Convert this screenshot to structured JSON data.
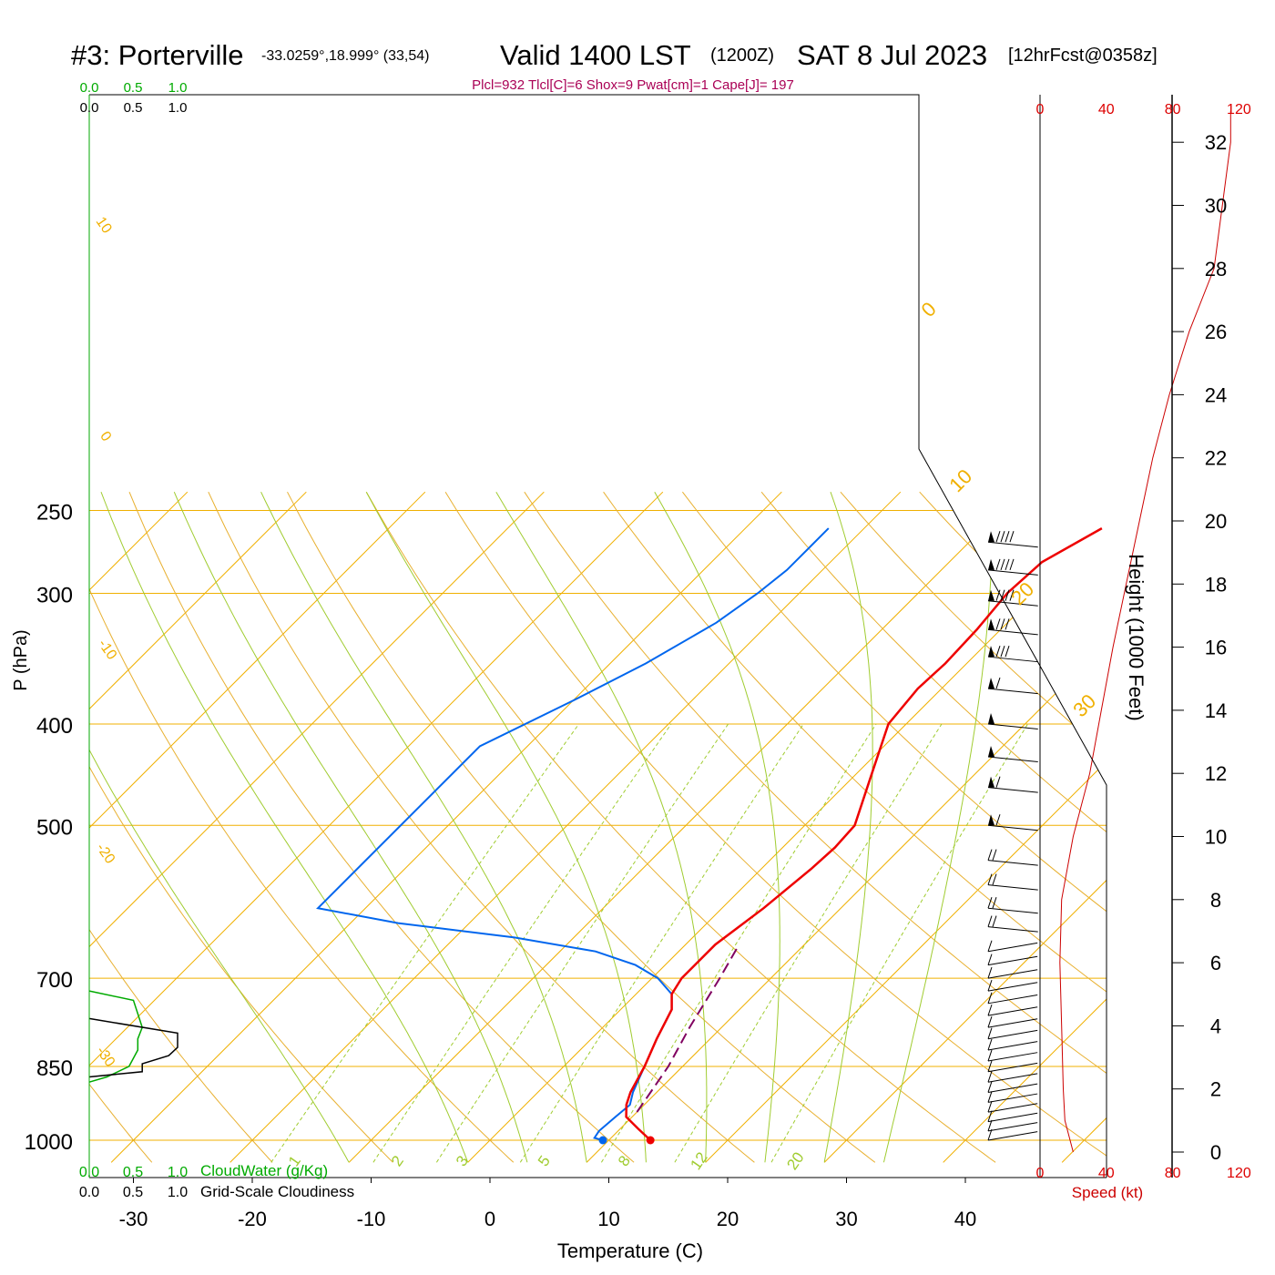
{
  "header": {
    "station": "#3: Porterville",
    "coords": "-33.0259°,18.999° (33,54)",
    "valid": "Valid 1400 LST",
    "zulu": "(1200Z)",
    "date": "SAT 8 Jul 2023",
    "fcst": "[12hrFcst@0358z]",
    "indices": "Plcl=932 Tlcl[C]=6 Shox=9 Pwat[cm]=1 Cape[J]= 197"
  },
  "colors": {
    "temperature": "#ee0000",
    "dewpoint": "#0066ee",
    "parcel": "#800060",
    "isobar": "#f0b000",
    "isotherm": "#f0b000",
    "dry_adiabat": "#e8b030",
    "moist_adiabat": "#a0cc30",
    "mixing_ratio": "#a0cc30",
    "cloud_water": "#00aa00",
    "cloudiness": "#000000",
    "speed": "#cc0000",
    "indices": "#aa0055"
  },
  "chart_data": {
    "type": "skew-t",
    "xlabel": "Temperature (C)",
    "ylabel": "P (hPa)",
    "right_axis_label": "Height (1000 Feet)",
    "x_ticks": [
      "-30",
      "-20",
      "-10",
      "0",
      "10",
      "20",
      "30",
      "40"
    ],
    "y_ticks": [
      "250",
      "300",
      "400",
      "500",
      "700",
      "850",
      "1000"
    ],
    "height_ticks": [
      "0",
      "2",
      "4",
      "6",
      "8",
      "10",
      "12",
      "14",
      "16",
      "18",
      "20",
      "22",
      "24",
      "26",
      "28",
      "30",
      "32"
    ],
    "speed_ticks": [
      "0",
      "40",
      "80",
      "120"
    ],
    "speed_label": "Speed (kt)",
    "cloud_scale_green": [
      "0.0",
      "0.5",
      "1.0"
    ],
    "cloud_scale_black": [
      "0.0",
      "0.5",
      "1.0"
    ],
    "cloud_water_label": "CloudWater (g/Kg)",
    "cloudiness_label": "Grid-Scale Cloudiness",
    "dry_adiabat_labels": [
      "10",
      "0",
      "-10",
      "-20",
      "-30"
    ],
    "isotherm_labels": [
      "0",
      "10",
      "20",
      "30"
    ],
    "mixing_ratio_labels": [
      "1",
      "2",
      "3",
      "5",
      "8",
      "12",
      "20"
    ],
    "temperature": [
      [
        1000,
        13.5
      ],
      [
        975,
        11.5
      ],
      [
        950,
        9.5
      ],
      [
        925,
        8.5
      ],
      [
        900,
        7.8
      ],
      [
        850,
        6.8
      ],
      [
        800,
        5.5
      ],
      [
        750,
        4.3
      ],
      [
        725,
        3.0
      ],
      [
        700,
        2.5
      ],
      [
        650,
        2.5
      ],
      [
        600,
        3.5
      ],
      [
        550,
        4.2
      ],
      [
        525,
        4.4
      ],
      [
        500,
        4.2
      ],
      [
        450,
        1.5
      ],
      [
        400,
        -1.5
      ],
      [
        370,
        -2.0
      ],
      [
        350,
        -1.8
      ],
      [
        325,
        -2.0
      ],
      [
        300,
        -2.5
      ],
      [
        280,
        -2.2
      ],
      [
        260,
        0.0
      ]
    ],
    "dewpoint": [
      [
        1000,
        9.5
      ],
      [
        995,
        8.6
      ],
      [
        980,
        8.4
      ],
      [
        950,
        8.6
      ],
      [
        925,
        8.8
      ],
      [
        900,
        8.0
      ],
      [
        850,
        6.8
      ],
      [
        800,
        5.5
      ],
      [
        750,
        4.3
      ],
      [
        725,
        3.0
      ],
      [
        700,
        0.5
      ],
      [
        680,
        -2.5
      ],
      [
        660,
        -7.0
      ],
      [
        640,
        -15.0
      ],
      [
        620,
        -26.0
      ],
      [
        600,
        -34.0
      ],
      [
        420,
        -34.0
      ],
      [
        380,
        -30.0
      ],
      [
        350,
        -27.0
      ],
      [
        320,
        -24.5
      ],
      [
        300,
        -23.5
      ],
      [
        285,
        -23.0
      ],
      [
        260,
        -23.0
      ]
    ],
    "parcel": [
      [
        940,
        10.0
      ],
      [
        850,
        8.8
      ],
      [
        780,
        7.3
      ],
      [
        700,
        5.7
      ],
      [
        650,
        4.5
      ]
    ],
    "wind_barbs": [
      [
        1000,
        "SE",
        10
      ],
      [
        980,
        "SE",
        10
      ],
      [
        960,
        "SE",
        10
      ],
      [
        940,
        "SE",
        10
      ],
      [
        920,
        "SE",
        10
      ],
      [
        900,
        "SE",
        10
      ],
      [
        880,
        "SE",
        10
      ],
      [
        860,
        "SE",
        10
      ],
      [
        840,
        "SE",
        10
      ],
      [
        820,
        "SE",
        10
      ],
      [
        800,
        "SE",
        10
      ],
      [
        780,
        "SE",
        10
      ],
      [
        760,
        "SE",
        10
      ],
      [
        740,
        "SE",
        10
      ],
      [
        720,
        "SE",
        10
      ],
      [
        700,
        "SE",
        10
      ],
      [
        680,
        "SE",
        10
      ],
      [
        660,
        "SE",
        10
      ],
      [
        625,
        "W",
        20
      ],
      [
        600,
        "W",
        20
      ],
      [
        570,
        "W",
        20
      ],
      [
        540,
        "W",
        20
      ],
      [
        500,
        "W",
        60
      ],
      [
        460,
        "W",
        60
      ],
      [
        430,
        "W",
        50
      ],
      [
        400,
        "W",
        55
      ],
      [
        370,
        "W",
        65
      ],
      [
        345,
        "W",
        80
      ],
      [
        325,
        "W",
        85
      ],
      [
        305,
        "W",
        90
      ],
      [
        285,
        "W",
        90
      ],
      [
        268,
        "W",
        90
      ]
    ],
    "speed_profile": [
      [
        0,
        20
      ],
      [
        1,
        15
      ],
      [
        2,
        14
      ],
      [
        4,
        13
      ],
      [
        6,
        12
      ],
      [
        8,
        13
      ],
      [
        10,
        20
      ],
      [
        11,
        25
      ],
      [
        12,
        30
      ],
      [
        14,
        37
      ],
      [
        16,
        44
      ],
      [
        18,
        52
      ],
      [
        20,
        60
      ],
      [
        22,
        68
      ],
      [
        24,
        78
      ],
      [
        26,
        90
      ],
      [
        28,
        105
      ],
      [
        30,
        110
      ],
      [
        32,
        115
      ],
      [
        33,
        115
      ]
    ],
    "cloud_water": [
      [
        720,
        0.0
      ],
      [
        735,
        0.5
      ],
      [
        780,
        0.6
      ],
      [
        800,
        0.55
      ],
      [
        820,
        0.55
      ],
      [
        850,
        0.45
      ],
      [
        870,
        0.2
      ],
      [
        880,
        0.0
      ]
    ],
    "cloudiness": [
      [
        765,
        0.0
      ],
      [
        790,
        1.0
      ],
      [
        815,
        1.0
      ],
      [
        830,
        0.9
      ],
      [
        845,
        0.6
      ],
      [
        860,
        0.6
      ],
      [
        870,
        0.0
      ]
    ]
  }
}
